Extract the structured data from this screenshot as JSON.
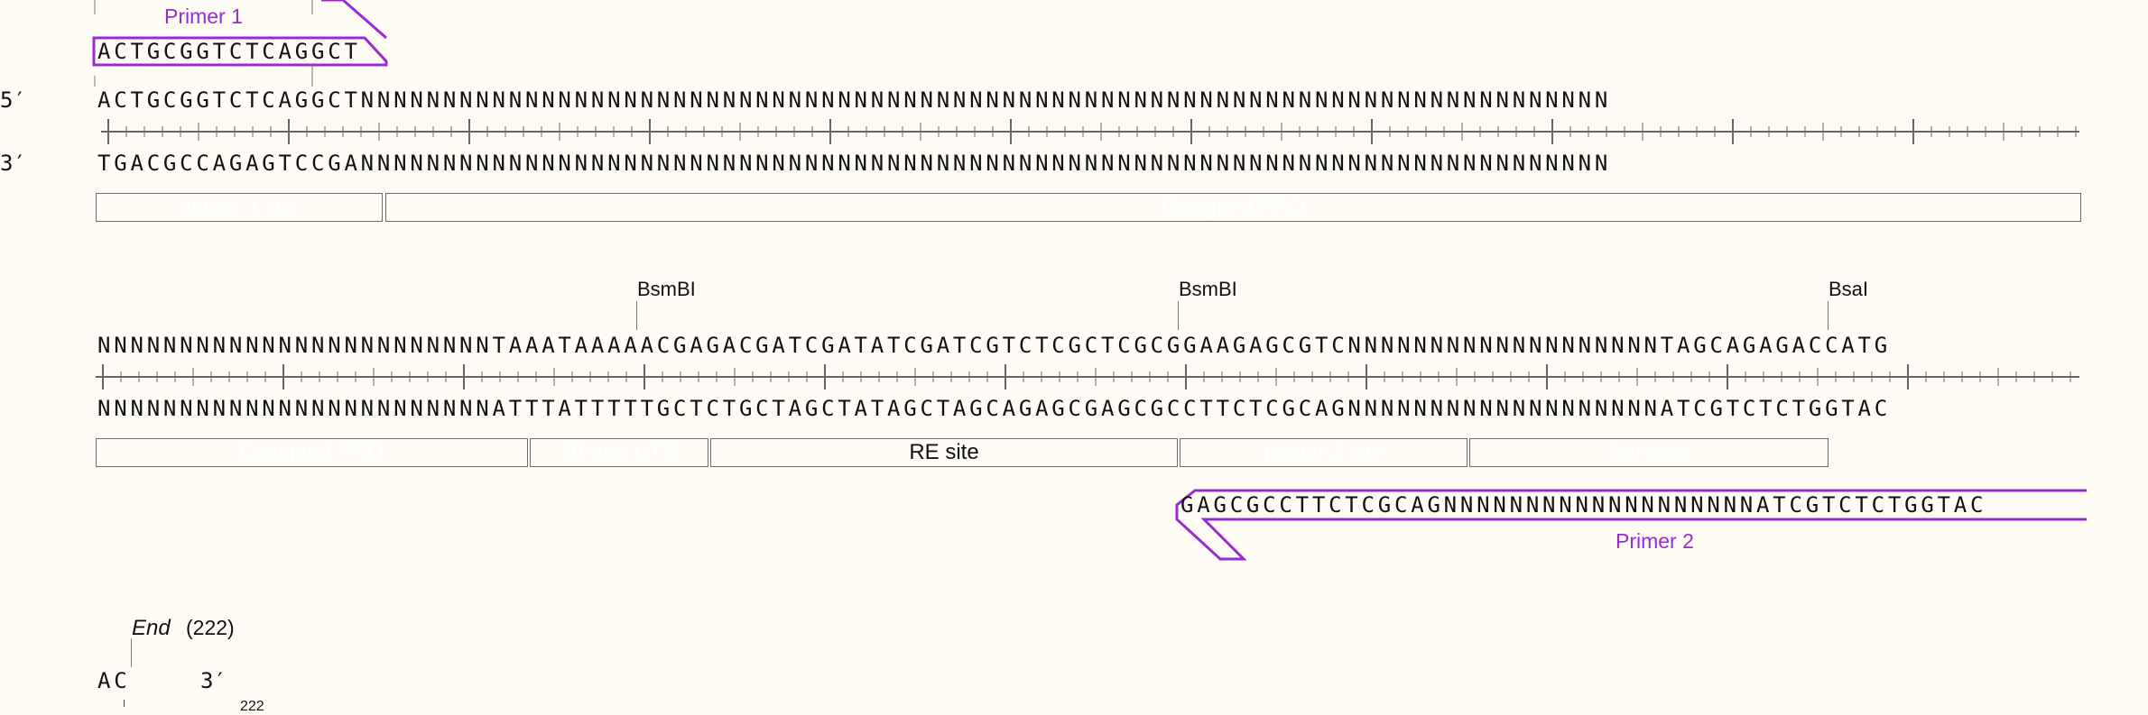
{
  "row1": {
    "five_label": "5′",
    "three_label": "3′",
    "top": "ACTGCGGTCTCAGGCTNNNNNNNNNNNNNNNNNNNNNNNNNNNNNNNNNNNNNNNNNNNNNNNNNNNNNNNNNNNNNNNNNNNNNNNNNNNN",
    "bottom": "TGACGCCAGAGTCCGANNNNNNNNNNNNNNNNNNNNNNNNNNNNNNNNNNNNNNNNNNNNNNNNNNNNNNNNNNNNNNNNNNNNNNNNNNNN",
    "primer_label": "Primer 1",
    "primer_seq": "ACTGCGGTCTCAGGCT",
    "features": [
      {
        "label": "primer 1 site",
        "color": "#3a78f2"
      },
      {
        "label": "Designed PRO",
        "color": "#800000"
      }
    ]
  },
  "row2": {
    "top": "NNNNNNNNNNNNNNNNNNNNNNNNTAAATAAAAACGAGACGATCGATATCGATCGTCTCGCTCGCGGAAGAGCGTCNNNNNNNNNNNNNNNNNNNTAGCAGAGACCATG",
    "bottom": "NNNNNNNNNNNNNNNNNNNNNNNNATTTATTTTTGCTCTGCTAGCTATAGCTAGCAGAGCGAGCGCCTTCTCGCAGNNNNNNNNNNNNNNNNNNNATCGTCTCTGGTAC",
    "sites": [
      "BsmBI",
      "BsmBI",
      "BsaI"
    ],
    "features": [
      {
        "label": "Designed PRO",
        "color": "#800000"
      },
      {
        "label": "10-mer UTR",
        "color": "#0a0a7a"
      },
      {
        "label": "RE site",
        "color": "#fccd00",
        "text_color": "#111111"
      },
      {
        "label": "primer 2 site",
        "color": "#3a78f2"
      },
      {
        "label": "Barcode",
        "color": "#2e9463"
      }
    ],
    "primer_label": "Primer 2",
    "primer_seq": "GAGCGCCTTCTCGCAGNNNNNNNNNNNNNNNNNNNATCGTCTCTGGTAC"
  },
  "row3": {
    "end_label": "End",
    "end_pos": "(222)",
    "seq": "AC",
    "three_label": "3′",
    "cut_number": "222"
  },
  "colors": {
    "primer": "#9a2bd3",
    "background": "#fefcf5"
  }
}
